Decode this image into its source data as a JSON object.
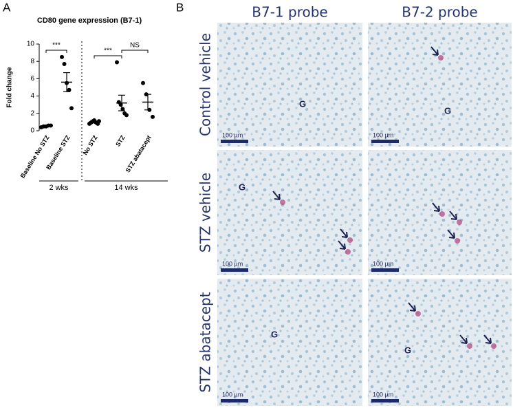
{
  "panel_labels": [
    "A",
    "B"
  ],
  "chart_data": {
    "type": "dot",
    "title": "CD80 gene expression (B7-1)",
    "ylabel": "Fold change",
    "categories": [
      "Baseline No STZ",
      "Baseline STZ",
      "No STZ",
      "STZ",
      "STZ abatacept"
    ],
    "points": [
      [
        0.4,
        0.5,
        0.5,
        0.6,
        0.6
      ],
      [
        8.5,
        7.7,
        5.5,
        4.7,
        2.6
      ],
      [
        0.8,
        0.9,
        1.0,
        1.1,
        1.2,
        1.0,
        0.9,
        0.8,
        1.1
      ],
      [
        7.9,
        3.3,
        3.0,
        2.5,
        2.0,
        1.8
      ],
      [
        5.5,
        4.2,
        2.4,
        1.6
      ]
    ],
    "means": [
      0.5,
      5.6,
      1.0,
      3.2,
      3.3
    ],
    "errors": [
      0.05,
      1.1,
      0.05,
      0.9,
      0.9
    ],
    "ylim": [
      0,
      10
    ],
    "yticks": [
      0,
      2,
      4,
      6,
      8,
      10
    ],
    "color": "#000000",
    "annotations": [
      "***",
      "***",
      "NS"
    ],
    "group_labels": [
      "2 wks",
      "14 wks"
    ]
  },
  "panel_b": {
    "columns": [
      "B7-1 probe",
      "B7-2 probe"
    ],
    "rows": [
      "Control vehicle",
      "STZ vehicle",
      "STZ abatacept"
    ],
    "images": [
      [
        {
          "scale_bar": "100 µm",
          "labels": [
            "G"
          ]
        },
        {
          "scale_bar": "100 µm",
          "labels": [
            "G"
          ]
        }
      ],
      [
        {
          "scale_bar": "100 µm",
          "labels": [
            "G"
          ]
        },
        {
          "scale_bar": "100 µm",
          "labels": []
        }
      ],
      [
        {
          "scale_bar": "100 µm",
          "labels": [
            "G"
          ]
        },
        {
          "scale_bar": "100 µm",
          "labels": [
            "G"
          ]
        }
      ]
    ]
  }
}
